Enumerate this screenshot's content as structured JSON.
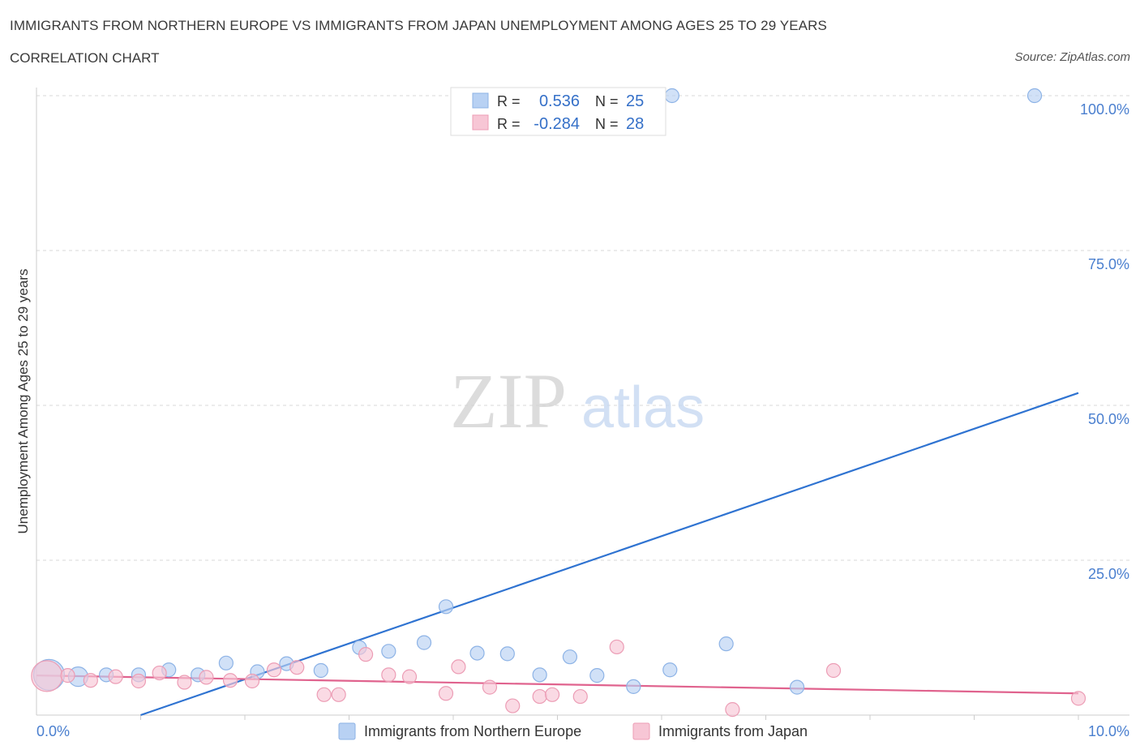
{
  "header": {
    "title": "IMMIGRANTS FROM NORTHERN EUROPE VS IMMIGRANTS FROM JAPAN UNEMPLOYMENT AMONG AGES 25 TO 29 YEARS",
    "subtitle": "CORRELATION CHART",
    "source": "Source: ZipAtlas.com"
  },
  "watermark": {
    "zip": "ZIP",
    "atlas": "atlas"
  },
  "colors": {
    "blue_fill": "#b8d1f3",
    "blue_stroke": "#8db3e6",
    "blue_line": "#2f73d1",
    "pink_fill": "#f7c6d5",
    "pink_stroke": "#ec9db5",
    "pink_line": "#e0638e",
    "grid": "#d9d9d9",
    "tick_text": "#4a7fcf"
  },
  "stats_box": {
    "rows": [
      {
        "r_label": "R =",
        "r_value": "0.536",
        "n_label": "N =",
        "n_value": "25"
      },
      {
        "r_label": "R =",
        "r_value": "-0.284",
        "n_label": "N =",
        "n_value": "28"
      }
    ]
  },
  "chart_data": {
    "type": "scatter",
    "title": "IMMIGRANTS FROM NORTHERN EUROPE VS IMMIGRANTS FROM JAPAN UNEMPLOYMENT AMONG AGES 25 TO 29 YEARS",
    "subtitle": "CORRELATION CHART",
    "xlabel": "",
    "ylabel": "Unemployment Among Ages 25 to 29 years",
    "xlim": [
      0,
      10
    ],
    "ylim": [
      0,
      100
    ],
    "x_tick_labels": {
      "min": "0.0%",
      "max": "10.0%"
    },
    "y_ticks": [
      {
        "value": 100,
        "label": "100.0%"
      },
      {
        "value": 75,
        "label": "75.0%"
      },
      {
        "value": 50,
        "label": "50.0%"
      },
      {
        "value": 25,
        "label": "25.0%"
      }
    ],
    "grid": true,
    "legend_position": "bottom-center",
    "series": [
      {
        "name": "Immigrants from Northern Europe",
        "color": "blue",
        "R": 0.536,
        "N": 25,
        "trend": {
          "x": [
            1.0,
            10.0
          ],
          "y": [
            0.0,
            52.0
          ]
        },
        "points": [
          {
            "x": 0.12,
            "y": 6.5,
            "size": 3
          },
          {
            "x": 0.4,
            "y": 6.2,
            "size": 2
          },
          {
            "x": 0.67,
            "y": 6.5,
            "size": 1
          },
          {
            "x": 0.98,
            "y": 6.5,
            "size": 1
          },
          {
            "x": 1.27,
            "y": 7.3,
            "size": 1
          },
          {
            "x": 1.55,
            "y": 6.5,
            "size": 1
          },
          {
            "x": 1.82,
            "y": 8.4,
            "size": 1
          },
          {
            "x": 2.12,
            "y": 7.0,
            "size": 1
          },
          {
            "x": 2.4,
            "y": 8.3,
            "size": 1
          },
          {
            "x": 2.73,
            "y": 7.2,
            "size": 1
          },
          {
            "x": 3.1,
            "y": 10.9,
            "size": 1
          },
          {
            "x": 3.38,
            "y": 10.3,
            "size": 1
          },
          {
            "x": 3.72,
            "y": 11.7,
            "size": 1
          },
          {
            "x": 3.93,
            "y": 17.5,
            "size": 1
          },
          {
            "x": 4.23,
            "y": 10.0,
            "size": 1
          },
          {
            "x": 4.52,
            "y": 9.9,
            "size": 1
          },
          {
            "x": 4.83,
            "y": 6.5,
            "size": 1
          },
          {
            "x": 5.12,
            "y": 9.4,
            "size": 1
          },
          {
            "x": 5.38,
            "y": 6.4,
            "size": 1
          },
          {
            "x": 5.73,
            "y": 4.6,
            "size": 1
          },
          {
            "x": 6.08,
            "y": 7.3,
            "size": 1
          },
          {
            "x": 6.1,
            "y": 100.0,
            "size": 1
          },
          {
            "x": 6.62,
            "y": 11.5,
            "size": 1
          },
          {
            "x": 7.3,
            "y": 4.5,
            "size": 1
          },
          {
            "x": 9.58,
            "y": 100.0,
            "size": 1
          }
        ]
      },
      {
        "name": "Immigrants from Japan",
        "color": "pink",
        "R": -0.284,
        "N": 28,
        "trend": {
          "x": [
            0.0,
            10.0
          ],
          "y": [
            6.4,
            3.5
          ]
        },
        "points": [
          {
            "x": 0.1,
            "y": 6.3,
            "size": 3
          },
          {
            "x": 0.3,
            "y": 6.4,
            "size": 1
          },
          {
            "x": 0.52,
            "y": 5.6,
            "size": 1
          },
          {
            "x": 0.76,
            "y": 6.2,
            "size": 1
          },
          {
            "x": 0.98,
            "y": 5.5,
            "size": 1
          },
          {
            "x": 1.18,
            "y": 6.8,
            "size": 1
          },
          {
            "x": 1.42,
            "y": 5.3,
            "size": 1
          },
          {
            "x": 1.63,
            "y": 6.1,
            "size": 1
          },
          {
            "x": 1.86,
            "y": 5.6,
            "size": 1
          },
          {
            "x": 2.07,
            "y": 5.5,
            "size": 1
          },
          {
            "x": 2.28,
            "y": 7.3,
            "size": 1
          },
          {
            "x": 2.5,
            "y": 7.7,
            "size": 1
          },
          {
            "x": 2.76,
            "y": 3.3,
            "size": 1
          },
          {
            "x": 2.9,
            "y": 3.3,
            "size": 1
          },
          {
            "x": 3.16,
            "y": 9.8,
            "size": 1
          },
          {
            "x": 3.38,
            "y": 6.5,
            "size": 1
          },
          {
            "x": 3.58,
            "y": 6.2,
            "size": 1
          },
          {
            "x": 3.93,
            "y": 3.5,
            "size": 1
          },
          {
            "x": 4.05,
            "y": 7.8,
            "size": 1
          },
          {
            "x": 4.35,
            "y": 4.5,
            "size": 1
          },
          {
            "x": 4.57,
            "y": 1.5,
            "size": 1
          },
          {
            "x": 4.83,
            "y": 3.0,
            "size": 1
          },
          {
            "x": 4.95,
            "y": 3.3,
            "size": 1
          },
          {
            "x": 5.22,
            "y": 3.0,
            "size": 1
          },
          {
            "x": 5.57,
            "y": 11.0,
            "size": 1
          },
          {
            "x": 6.68,
            "y": 0.9,
            "size": 1
          },
          {
            "x": 7.65,
            "y": 7.2,
            "size": 1
          },
          {
            "x": 10.0,
            "y": 2.7,
            "size": 1
          }
        ]
      }
    ]
  }
}
